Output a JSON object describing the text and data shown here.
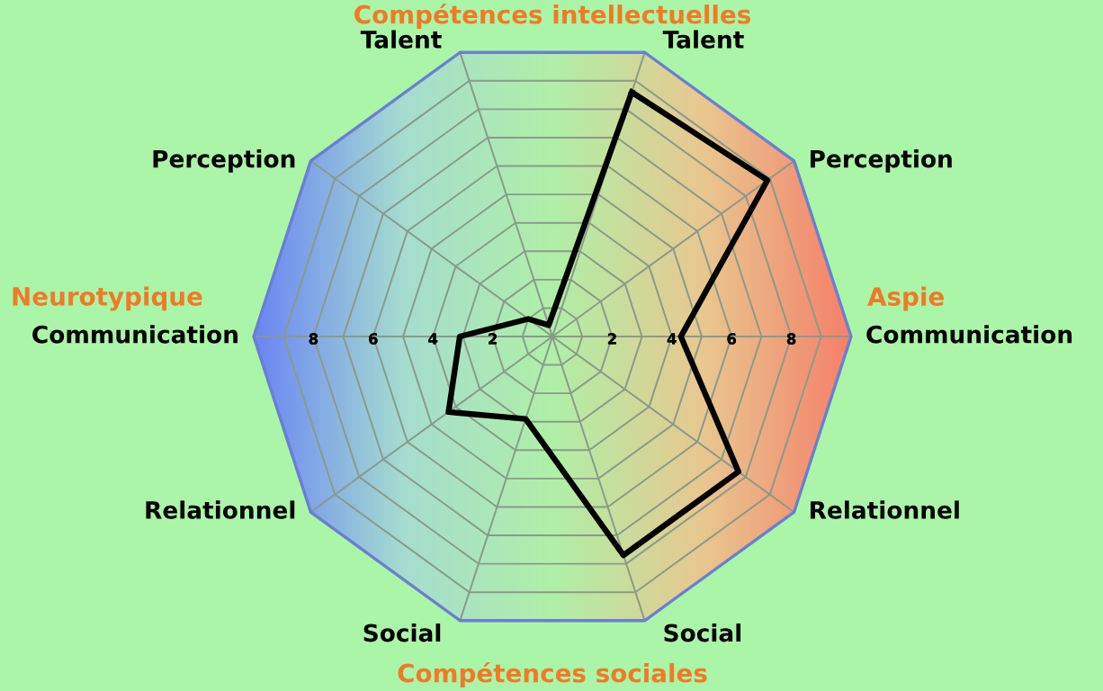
{
  "chart_data": {
    "type": "radar",
    "title": "Compétences intellectuelles",
    "annotations": [
      "Compétences sociales",
      "Neurotypique",
      "Aspie"
    ],
    "categories": [
      "Talent",
      "Perception",
      "Communication",
      "Relationnel",
      "Social",
      "Social",
      "Relationnel",
      "Communication",
      "Perception",
      "Talent"
    ],
    "series": [
      {
        "color": "#000000",
        "values": [
          8.6,
          8.9,
          4.3,
          7.7,
          7.7,
          2.9,
          4.3,
          3.1,
          1.0,
          0.4
        ]
      }
    ],
    "ylim": [
      0,
      10
    ],
    "yticks": [
      2,
      4,
      6,
      8,
      2,
      4,
      6,
      8
    ],
    "grid": true,
    "marker": "none",
    "line_style": "solid"
  }
}
